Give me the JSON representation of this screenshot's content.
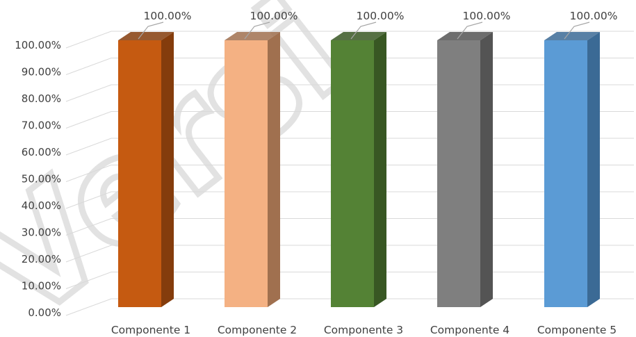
{
  "watermark": {
    "text": "Versi"
  },
  "chart_data": {
    "type": "bar",
    "style": "3d-column",
    "categories": [
      "Componente 1",
      "Componente 2",
      "Componente 3",
      "Componente 4",
      "Componente 5"
    ],
    "values": [
      100,
      100,
      100,
      100,
      100
    ],
    "data_labels": [
      "100.00%",
      "100.00%",
      "100.00%",
      "100.00%",
      "100.00%"
    ],
    "colors": [
      "#c55a11",
      "#f4b183",
      "#548235",
      "#7f7f7f",
      "#5b9bd5"
    ],
    "side_colors": [
      "#843c0c",
      "#a0704f",
      "#385723",
      "#545454",
      "#3b6a95"
    ],
    "y_ticks": [
      "0.00%",
      "10.00%",
      "20.00%",
      "30.00%",
      "40.00%",
      "50.00%",
      "60.00%",
      "70.00%",
      "80.00%",
      "90.00%",
      "100.00%"
    ],
    "ylim": [
      0,
      100
    ],
    "title": "",
    "xlabel": "",
    "ylabel": "",
    "grid": true,
    "legend": "none"
  }
}
